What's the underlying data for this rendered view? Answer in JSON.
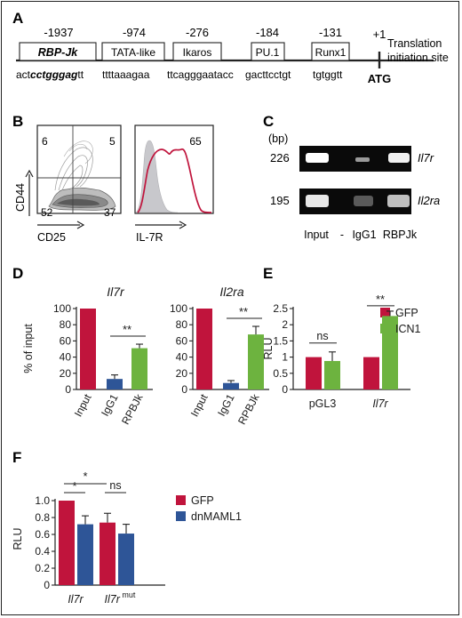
{
  "panel_a": {
    "letter": "A",
    "motifs": [
      {
        "pos": "-1937",
        "name": "RBP-Jk",
        "seq_pre": "act",
        "seq_core": "cctgggag",
        "seq_post": "tt"
      },
      {
        "pos": "-974",
        "name": "TATA-like",
        "seq": "ttttaaagaa"
      },
      {
        "pos": "-276",
        "name": "Ikaros",
        "seq": "ttcagggaatacc"
      },
      {
        "pos": "-184",
        "name": "PU.1",
        "seq": "gacttcctgt"
      },
      {
        "pos": "-131",
        "name": "Runx1",
        "seq": "tgtggtt"
      }
    ],
    "plus_one": "+1",
    "start_label_1": "Translation",
    "start_label_2": "initiation site",
    "atg": "ATG"
  },
  "panel_b": {
    "letter": "B",
    "contour": {
      "q_tl": "6",
      "q_tr": "5",
      "q_bl": "52",
      "q_br": "37",
      "ylabel": "CD44",
      "xlabel": "CD25"
    },
    "histogram": {
      "pct": "65",
      "xlabel": "IL-7R",
      "stain_color": "#c0143c",
      "control_color": "#c8c8cc"
    }
  },
  "panel_c": {
    "letter": "C",
    "unit": "(bp)",
    "sizes": [
      "226",
      "195"
    ],
    "genes": [
      "Il7r",
      "Il2ra"
    ],
    "lanes": [
      "Input",
      "-",
      "IgG1",
      "RBPJk"
    ]
  },
  "colors": {
    "red": "#c0143c",
    "blue": "#2e5597",
    "green": "#6db33f"
  },
  "chart_data": [
    {
      "type": "bar",
      "panel": "D",
      "title": "Il7r",
      "categories": [
        "Input",
        "IgG1",
        "RPBJk"
      ],
      "values": [
        100,
        13,
        51
      ],
      "errors": [
        0,
        5,
        5
      ],
      "ylabel": "% of input",
      "ylim": [
        0,
        100
      ],
      "yticks": [
        0,
        20,
        40,
        60,
        80,
        100
      ],
      "significance": [
        {
          "from": "IgG1",
          "to": "RPBJk",
          "label": "**"
        }
      ]
    },
    {
      "type": "bar",
      "panel": "D",
      "title": "Il2ra",
      "categories": [
        "Input",
        "IgG1",
        "RPBJk"
      ],
      "values": [
        100,
        8,
        68
      ],
      "errors": [
        0,
        3,
        10
      ],
      "ylim": [
        0,
        100
      ],
      "yticks": [
        0,
        20,
        40,
        60,
        80,
        100
      ],
      "significance": [
        {
          "from": "IgG1",
          "to": "RPBJk",
          "label": "**"
        }
      ]
    },
    {
      "type": "bar",
      "panel": "E",
      "categories": [
        "pGL3",
        "Il7r"
      ],
      "series": [
        {
          "name": "GFP",
          "values": [
            1.0,
            1.0
          ],
          "errors": [
            0,
            0
          ]
        },
        {
          "name": "ICN1",
          "values": [
            0.88,
            2.27
          ],
          "errors": [
            0.28,
            0.15
          ]
        }
      ],
      "ylabel": "RLU",
      "ylim": [
        0,
        2.5
      ],
      "yticks": [
        "0",
        "0.5",
        "1",
        "1.5",
        "2",
        "2.5"
      ],
      "legend": "top-right",
      "significance": [
        {
          "category": "pGL3",
          "label": "ns"
        },
        {
          "category": "Il7r",
          "label": "**"
        }
      ]
    },
    {
      "type": "bar",
      "panel": "F",
      "categories": [
        "Il7r",
        "Il7r"
      ],
      "category_superscripts": [
        "",
        "mut"
      ],
      "series": [
        {
          "name": "GFP",
          "values": [
            1.0,
            0.74
          ],
          "errors": [
            0,
            0.11
          ]
        },
        {
          "name": "dnMAML1",
          "values": [
            0.72,
            0.61
          ],
          "errors": [
            0.1,
            0.11
          ]
        }
      ],
      "ylabel": "RLU",
      "ylim": [
        0,
        1.0
      ],
      "yticks": [
        "0",
        "0.2",
        "0.4",
        "0.6",
        "0.8",
        "1.0"
      ],
      "legend": "top-right",
      "significance": [
        {
          "label": "*"
        },
        {
          "label": "*"
        },
        {
          "label": "ns"
        }
      ]
    }
  ]
}
